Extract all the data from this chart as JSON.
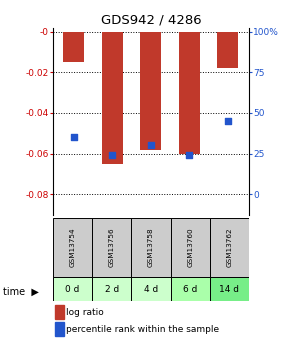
{
  "title": "GDS942 / 4286",
  "categories": [
    "GSM13754",
    "GSM13756",
    "GSM13758",
    "GSM13760",
    "GSM13762"
  ],
  "time_labels": [
    "0 d",
    "2 d",
    "4 d",
    "6 d",
    "14 d"
  ],
  "log_ratios": [
    -0.015,
    -0.065,
    -0.058,
    -0.06,
    -0.018
  ],
  "percentile_ranks": [
    35,
    24,
    30,
    24,
    45
  ],
  "bar_color": "#c0392b",
  "dot_color": "#2255cc",
  "left_yticks": [
    0,
    -0.02,
    -0.04,
    -0.06,
    -0.08
  ],
  "left_yticklabels": [
    "-0",
    "-0.02",
    "-0.04",
    "-0.06",
    "-0.08"
  ],
  "right_yticklabels": [
    "0",
    "25",
    "50",
    "75",
    "100%"
  ],
  "bar_width": 0.55,
  "sample_bg_color": "#cccccc",
  "time_bg_colors": [
    "#ccffcc",
    "#ccffcc",
    "#ccffcc",
    "#aaffaa",
    "#77ee88"
  ],
  "legend_log_label": "log ratio",
  "legend_pct_label": "percentile rank within the sample"
}
